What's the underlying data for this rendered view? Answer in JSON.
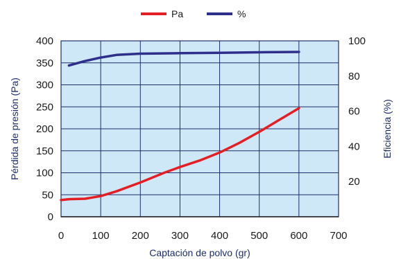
{
  "chart_data": {
    "type": "line",
    "xlabel": "Captación de polvo (gr)",
    "ylabel_left": "Pérdida de presión (Pa)",
    "ylabel_right": "Eficiencia (%)",
    "xlim": [
      0,
      700
    ],
    "ylim_left": [
      0,
      400
    ],
    "ylim_right": [
      0,
      100
    ],
    "x_ticks": [
      0,
      100,
      200,
      300,
      400,
      500,
      600,
      700
    ],
    "y_ticks_left": [
      0,
      50,
      100,
      150,
      200,
      250,
      300,
      350,
      400
    ],
    "y_ticks_right": [
      20,
      40,
      60,
      80,
      100
    ],
    "grid": true,
    "legend_position": "top-center",
    "colors": {
      "plot_background": "#cfe8f7",
      "grid": "#1f2d6b",
      "pa": "#e31e24",
      "efficiency": "#2e2f8a"
    },
    "series": [
      {
        "name": "Pa",
        "axis": "left",
        "x": [
          0,
          20,
          60,
          100,
          140,
          200,
          260,
          300,
          350,
          400,
          450,
          500,
          550,
          600
        ],
        "y": [
          38,
          40,
          41,
          47,
          58,
          78,
          100,
          113,
          128,
          146,
          168,
          193,
          220,
          247
        ]
      },
      {
        "name": "%",
        "axis": "right",
        "x": [
          20,
          60,
          100,
          140,
          200,
          300,
          400,
          500,
          600
        ],
        "y": [
          86,
          88.5,
          90.5,
          92,
          92.7,
          93,
          93.2,
          93.5,
          93.7
        ]
      }
    ]
  }
}
